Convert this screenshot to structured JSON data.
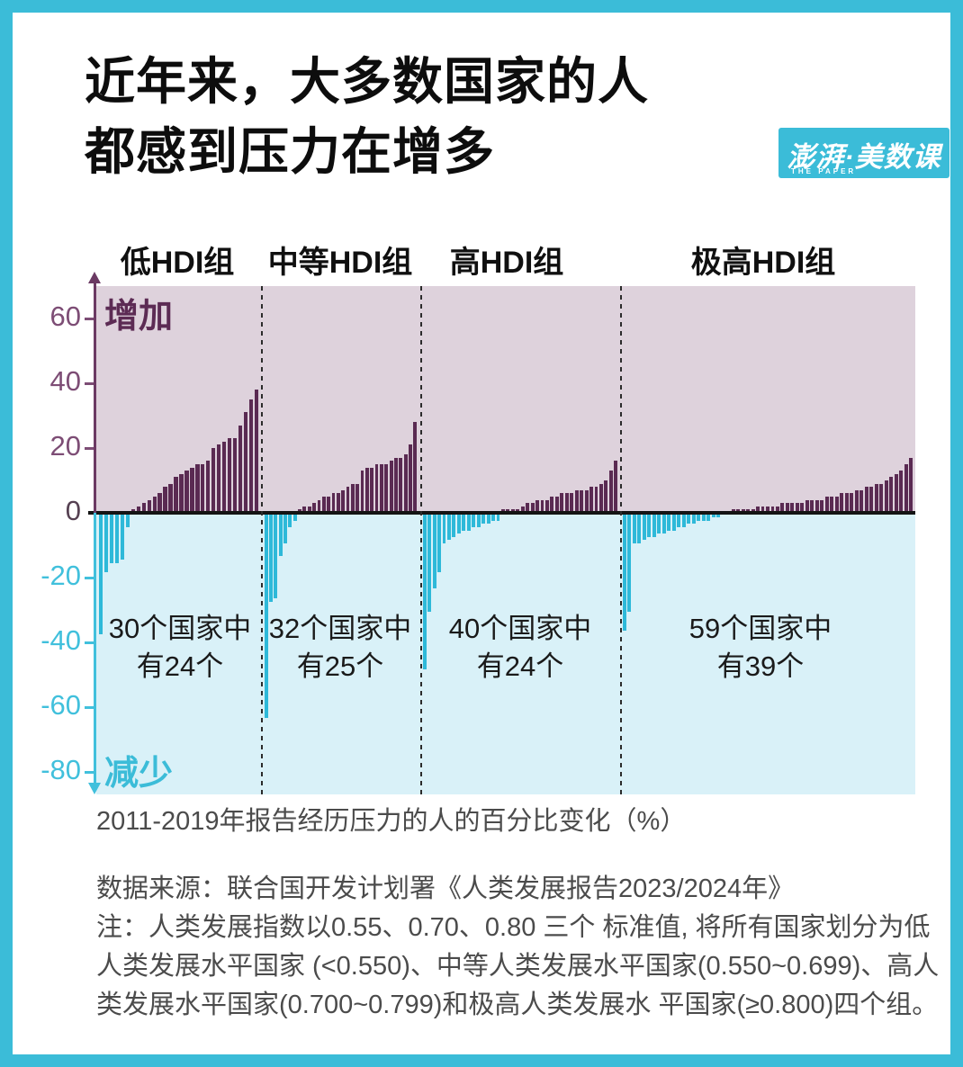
{
  "frame": {
    "border_color": "#3bbcd8",
    "background": "#ffffff"
  },
  "title": {
    "line1": "近年来，大多数国家的人",
    "line2": "都感到压力在增多"
  },
  "logo": {
    "main": "澎湃·美数课",
    "sub": "THE PAPER",
    "bg_color": "#3bbcd8"
  },
  "chart_data": {
    "type": "bar",
    "title": "",
    "xlabel": "",
    "ylabel": "",
    "caption": "2011-2019年报告经历压力的人的百分比变化（%）",
    "ylabel_top": "增加",
    "ylabel_bottom": "减少",
    "ylim": [
      -87,
      70
    ],
    "grid": false,
    "legend": "none",
    "yticks": [
      {
        "label": "60",
        "value": 60,
        "tone": "purple"
      },
      {
        "label": "40",
        "value": 40,
        "tone": "purple"
      },
      {
        "label": "20",
        "value": 20,
        "tone": "purple"
      },
      {
        "label": "0",
        "value": 0,
        "tone": "zero"
      },
      {
        "label": "-20",
        "value": -20,
        "tone": "cyan"
      },
      {
        "label": "-40",
        "value": -40,
        "tone": "cyan"
      },
      {
        "label": "-60",
        "value": -60,
        "tone": "cyan"
      },
      {
        "label": "-80",
        "value": -80,
        "tone": "cyan"
      }
    ],
    "groups": [
      {
        "label": "低HDI组",
        "annotation_line1": "30个国家中",
        "annotation_line2": "有24个",
        "countries_total": 30,
        "countries_increased": 24,
        "values": [
          -37,
          -18,
          -15,
          -15,
          -14,
          -4,
          1,
          2,
          3,
          4,
          5,
          6,
          8,
          9,
          11,
          12,
          13,
          14,
          15,
          15,
          16,
          20,
          21,
          22,
          23,
          23,
          27,
          31,
          35,
          38
        ]
      },
      {
        "label": "中等HDI组",
        "annotation_line1": "32个国家中",
        "annotation_line2": "有25个",
        "countries_total": 32,
        "countries_increased": 25,
        "values": [
          -63,
          -27,
          -26,
          -13,
          -9,
          -4,
          -2,
          1,
          2,
          2,
          3,
          4,
          5,
          5,
          6,
          6,
          7,
          8,
          9,
          9,
          13,
          14,
          14,
          15,
          15,
          15,
          16,
          17,
          17,
          18,
          21,
          28
        ]
      },
      {
        "label": "高HDI组",
        "annotation_line1": "40个国家中",
        "annotation_line2": "有24个",
        "countries_total": 40,
        "countries_increased": 24,
        "values": [
          -48,
          -30,
          -23,
          -18,
          -9,
          -8,
          -7,
          -6,
          -5,
          -5,
          -4,
          -4,
          -3,
          -3,
          -2,
          -2,
          1,
          1,
          1,
          1,
          2,
          3,
          3,
          4,
          4,
          4,
          5,
          5,
          6,
          6,
          6,
          7,
          7,
          7,
          8,
          8,
          9,
          10,
          13,
          16
        ]
      },
      {
        "label": "极高HDI组",
        "annotation_line1": "59个国家中",
        "annotation_line2": "有39个",
        "countries_total": 59,
        "countries_increased": 39,
        "values": [
          -36,
          -30,
          -9,
          -9,
          -8,
          -7,
          -7,
          -6,
          -6,
          -5,
          -5,
          -4,
          -4,
          -3,
          -3,
          -2,
          -2,
          -2,
          -1,
          -1,
          0.5,
          0.5,
          1,
          1,
          1,
          1,
          1,
          2,
          2,
          2,
          2,
          2,
          3,
          3,
          3,
          3,
          3,
          4,
          4,
          4,
          4,
          5,
          5,
          5,
          6,
          6,
          6,
          7,
          7,
          8,
          8,
          9,
          9,
          10,
          11,
          12,
          13,
          15,
          17
        ]
      }
    ],
    "colors": {
      "positive_bar": "#5a2a52",
      "negative_bar": "#2eb9d9",
      "positive_bg": "#ded2dc",
      "negative_bg": "#d9f1f8",
      "tick_purple": "#7d4d75",
      "tick_zero": "#564152",
      "tick_cyan": "#41c0dc",
      "zero_line": "#141414",
      "separator": "#2b2b2b"
    }
  },
  "footer": {
    "source": "数据来源：联合国开发计划署《人类发展报告2023/2024年》",
    "note_line1": "注：人类发展指数以0.55、0.70、0.80 三个 标准值, 将所有国家划分为低",
    "note_line2": "人类发展水平国家 (<0.550)、中等人类发展水平国家(0.550~0.699)、高人",
    "note_line3": "类发展水平国家(0.700~0.799)和极高人类发展水 平国家(≥0.800)四个组。"
  }
}
